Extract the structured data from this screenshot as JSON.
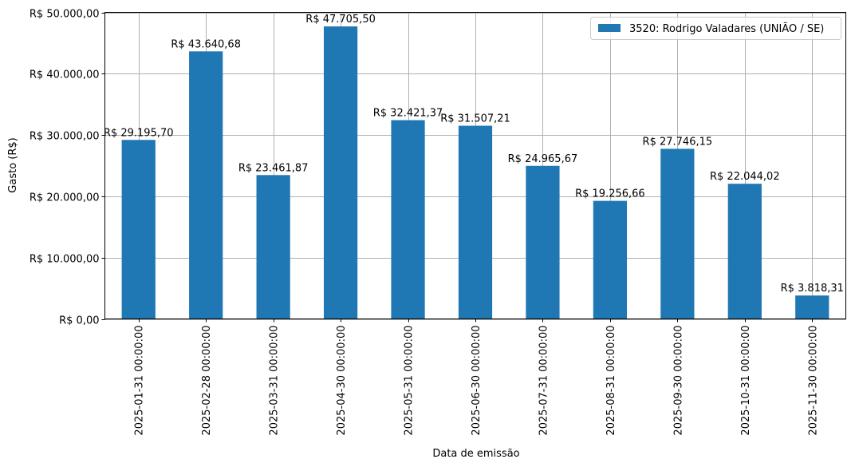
{
  "chart_data": {
    "type": "bar",
    "title": "",
    "xlabel": "Data de emissão",
    "ylabel": "Gasto (R$)",
    "ylim": [
      0,
      50000
    ],
    "grid": true,
    "legend_position": "upper right",
    "bar_color": "#1f77b4",
    "categories": [
      "2025-01-31 00:00:00",
      "2025-02-28 00:00:00",
      "2025-03-31 00:00:00",
      "2025-04-30 00:00:00",
      "2025-05-31 00:00:00",
      "2025-06-30 00:00:00",
      "2025-07-31 00:00:00",
      "2025-08-31 00:00:00",
      "2025-09-30 00:00:00",
      "2025-10-31 00:00:00",
      "2025-11-30 00:00:00"
    ],
    "series": [
      {
        "name": "3520: Rodrigo Valadares (UNIÃO / SE)",
        "values": [
          29195.7,
          43640.68,
          23461.87,
          47705.5,
          32421.37,
          31507.21,
          24965.67,
          19256.66,
          27746.15,
          22044.02,
          3818.31
        ],
        "labels": [
          "R$ 29.195,70",
          "R$ 43.640,68",
          "R$ 23.461,87",
          "R$ 47.705,50",
          "R$ 32.421,37",
          "R$ 31.507,21",
          "R$ 24.965,67",
          "R$ 19.256,66",
          "R$ 27.746,15",
          "R$ 22.044,02",
          "R$ 3.818,31"
        ]
      }
    ],
    "yticks": [
      0,
      10000,
      20000,
      30000,
      40000,
      50000
    ],
    "ytick_labels": [
      "R$ 0,00",
      "R$ 10.000,00",
      "R$ 20.000,00",
      "R$ 30.000,00",
      "R$ 40.000,00",
      "R$ 50.000,00"
    ]
  }
}
